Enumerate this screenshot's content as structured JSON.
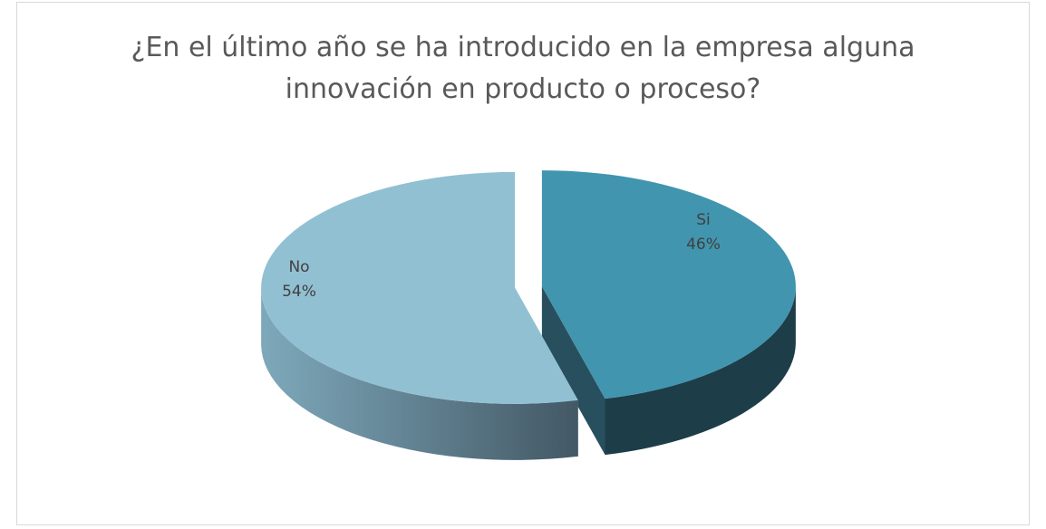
{
  "chart_data": {
    "type": "pie",
    "title": "¿En el último año se ha introducido en la empresa alguna innovación en producto o proceso?",
    "categories": [
      "Si",
      "No"
    ],
    "values": [
      46,
      54
    ],
    "value_labels": [
      "46%",
      "54%"
    ],
    "colors": [
      "#4195ae",
      "#92c0d3"
    ]
  }
}
